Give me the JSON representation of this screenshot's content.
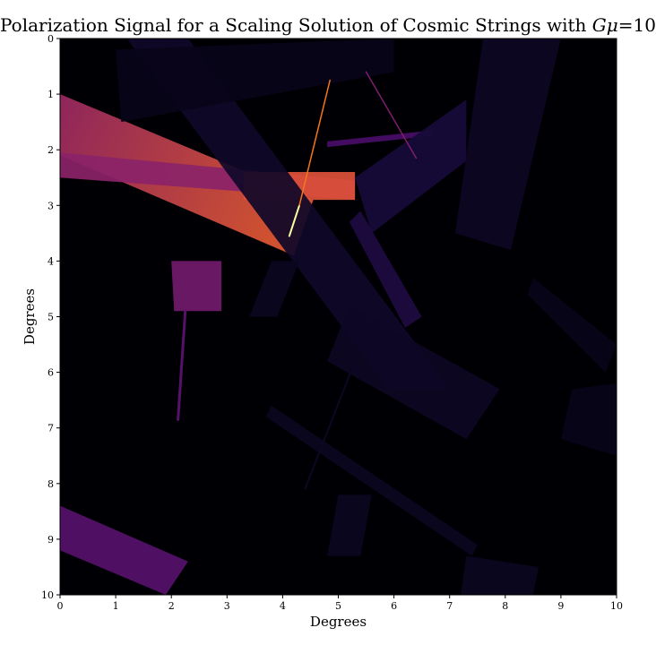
{
  "chart_data": {
    "type": "heatmap",
    "title": "Polarization Signal for a Scaling Solution of Cosmic Strings with Gμ=10",
    "xlabel": "Degrees",
    "ylabel": "Degrees",
    "xlim": [
      0,
      10
    ],
    "ylim": [
      10,
      0
    ],
    "x_ticks": [
      "0",
      "1",
      "2",
      "3",
      "4",
      "5",
      "6",
      "7",
      "8",
      "9",
      "10"
    ],
    "y_ticks": [
      "0",
      "1",
      "2",
      "3",
      "4",
      "5",
      "6",
      "7",
      "8",
      "9",
      "10"
    ],
    "colormap": "inferno",
    "background_color": "#000004",
    "grid": false,
    "string_wakes": [
      {
        "polygon": [
          [
            0.0,
            1.0
          ],
          [
            4.55,
            2.9
          ],
          [
            4.2,
            3.9
          ],
          [
            0.0,
            2.1
          ]
        ],
        "intensity": 0.42,
        "gradient_to": 0.62
      },
      {
        "polygon": [
          [
            0.0,
            2.05
          ],
          [
            5.3,
            2.55
          ],
          [
            5.3,
            2.9
          ],
          [
            0.0,
            2.5
          ]
        ],
        "intensity": 0.38
      },
      {
        "polygon": [
          [
            2.0,
            4.0
          ],
          [
            2.9,
            4.0
          ],
          [
            2.9,
            4.9
          ],
          [
            2.05,
            4.9
          ]
        ],
        "intensity": 0.32
      },
      {
        "polygon": [
          [
            0.0,
            8.4
          ],
          [
            2.3,
            9.4
          ],
          [
            1.9,
            10.0
          ],
          [
            0.0,
            9.2
          ]
        ],
        "intensity": 0.25
      },
      {
        "polygon": [
          [
            4.8,
            1.85
          ],
          [
            6.7,
            1.65
          ],
          [
            6.7,
            1.75
          ],
          [
            4.8,
            1.95
          ]
        ],
        "intensity": 0.22
      },
      {
        "polygon": [
          [
            3.3,
            2.4
          ],
          [
            5.3,
            2.4
          ],
          [
            5.3,
            2.9
          ],
          [
            3.3,
            2.9
          ]
        ],
        "intensity": 0.6
      },
      {
        "polygon": [
          [
            1.2,
            0.0
          ],
          [
            2.3,
            0.0
          ],
          [
            7.0,
            6.3
          ],
          [
            5.9,
            6.3
          ]
        ],
        "intensity": 0.07
      },
      {
        "polygon": [
          [
            5.3,
            2.5
          ],
          [
            7.3,
            1.1
          ],
          [
            7.3,
            2.2
          ],
          [
            5.6,
            3.5
          ]
        ],
        "intensity": 0.1
      },
      {
        "polygon": [
          [
            7.6,
            0.0
          ],
          [
            9.0,
            0.0
          ],
          [
            8.1,
            3.8
          ],
          [
            7.1,
            3.5
          ]
        ],
        "intensity": 0.06
      },
      {
        "polygon": [
          [
            5.2,
            4.8
          ],
          [
            7.9,
            6.3
          ],
          [
            7.3,
            7.2
          ],
          [
            4.8,
            5.8
          ]
        ],
        "intensity": 0.06
      },
      {
        "polygon": [
          [
            3.8,
            6.6
          ],
          [
            7.5,
            9.1
          ],
          [
            7.4,
            9.3
          ],
          [
            3.7,
            6.8
          ]
        ],
        "intensity": 0.05
      },
      {
        "polygon": [
          [
            1.0,
            0.2
          ],
          [
            6.0,
            0.0
          ],
          [
            6.0,
            0.6
          ],
          [
            1.1,
            1.5
          ]
        ],
        "intensity": 0.04
      },
      {
        "polygon": [
          [
            5.4,
            3.1
          ],
          [
            6.5,
            5.0
          ],
          [
            6.2,
            5.2
          ],
          [
            5.2,
            3.3
          ]
        ],
        "intensity": 0.12
      },
      {
        "polygon": [
          [
            8.5,
            4.3
          ],
          [
            10.0,
            5.5
          ],
          [
            9.8,
            6.0
          ],
          [
            8.4,
            4.6
          ]
        ],
        "intensity": 0.04
      },
      {
        "polygon": [
          [
            9.2,
            6.3
          ],
          [
            10.0,
            6.2
          ],
          [
            10.0,
            7.5
          ],
          [
            9.0,
            7.2
          ]
        ],
        "intensity": 0.04
      },
      {
        "polygon": [
          [
            7.3,
            9.3
          ],
          [
            8.6,
            9.5
          ],
          [
            8.5,
            10.0
          ],
          [
            7.2,
            10.0
          ]
        ],
        "intensity": 0.05
      },
      {
        "polygon": [
          [
            5.0,
            8.2
          ],
          [
            5.6,
            8.2
          ],
          [
            5.4,
            9.3
          ],
          [
            4.8,
            9.3
          ]
        ],
        "intensity": 0.05
      },
      {
        "polygon": [
          [
            3.8,
            4.0
          ],
          [
            4.3,
            4.0
          ],
          [
            3.9,
            5.0
          ],
          [
            3.4,
            5.0
          ]
        ],
        "intensity": 0.05
      }
    ],
    "string_lines": [
      {
        "from": [
          4.12,
          3.55
        ],
        "to": [
          4.3,
          3.0
        ],
        "intensity": 1.0,
        "width": 2
      },
      {
        "from": [
          4.3,
          3.0
        ],
        "to": [
          4.85,
          0.75
        ],
        "intensity": 0.7,
        "width": 1.5
      },
      {
        "from": [
          5.5,
          0.6
        ],
        "to": [
          6.4,
          2.15
        ],
        "intensity": 0.35,
        "width": 1.5
      },
      {
        "from": [
          2.25,
          4.9
        ],
        "to": [
          2.12,
          6.85
        ],
        "intensity": 0.25,
        "width": 3
      },
      {
        "from": [
          4.4,
          8.1
        ],
        "to": [
          5.3,
          5.8
        ],
        "intensity": 0.06,
        "width": 2
      }
    ]
  }
}
